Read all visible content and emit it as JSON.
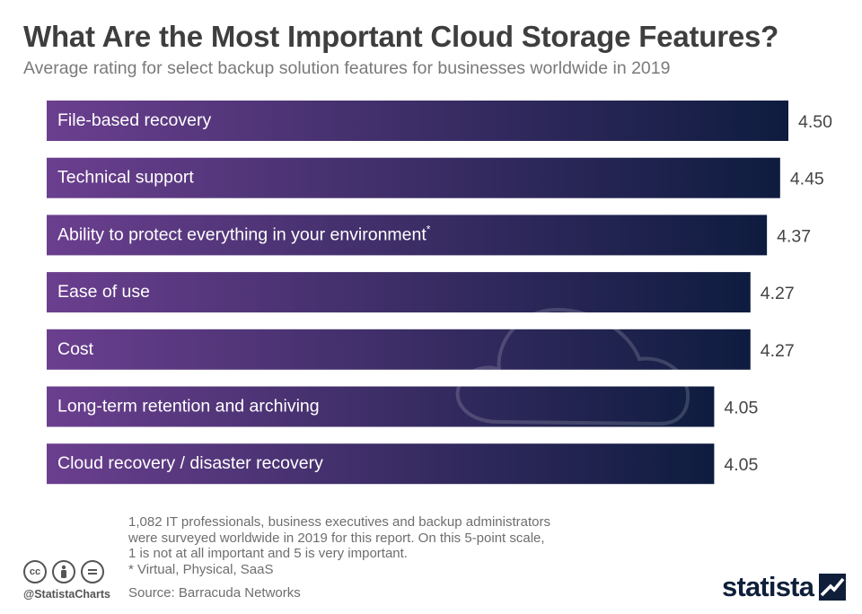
{
  "title": "What Are the Most Important Cloud Storage Features?",
  "subtitle": "Average rating for select backup solution features for businesses worldwide in 2019",
  "chart_data": {
    "type": "bar",
    "orientation": "horizontal",
    "categories": [
      "File-based recovery",
      "Technical support",
      "Ability to protect everything in your environment",
      "Ease of use",
      "Cost",
      "Long-term retention and archiving",
      "Cloud recovery / disaster recovery"
    ],
    "category_marks": [
      "",
      "",
      "*",
      "",
      "",
      "",
      ""
    ],
    "values": [
      4.5,
      4.45,
      4.37,
      4.27,
      4.27,
      4.05,
      4.05
    ],
    "value_labels": [
      "4.50",
      "4.45",
      "4.37",
      "4.27",
      "4.27",
      "4.05",
      "4.05"
    ],
    "xlim": [
      0,
      4.5
    ],
    "grid": false,
    "bar_gradient": [
      "#6b3f8f",
      "#0e1c3f"
    ],
    "label_color": "#ffffff",
    "value_color": "#444444"
  },
  "footnote": [
    "1,082 IT professionals, business executives and backup administrators",
    "were surveyed worldwide in 2019 for this report. On this 5-point scale,",
    "1 is not at all important and 5 is very important.",
    "* Virtual, Physical, SaaS"
  ],
  "source": "Source: Barracuda Networks",
  "handle": "@StatistaCharts",
  "brand": "statista",
  "icons": [
    "cc-icon",
    "attribution-icon",
    "no-derivatives-icon",
    "cloud-icon",
    "statista-logo-icon"
  ]
}
